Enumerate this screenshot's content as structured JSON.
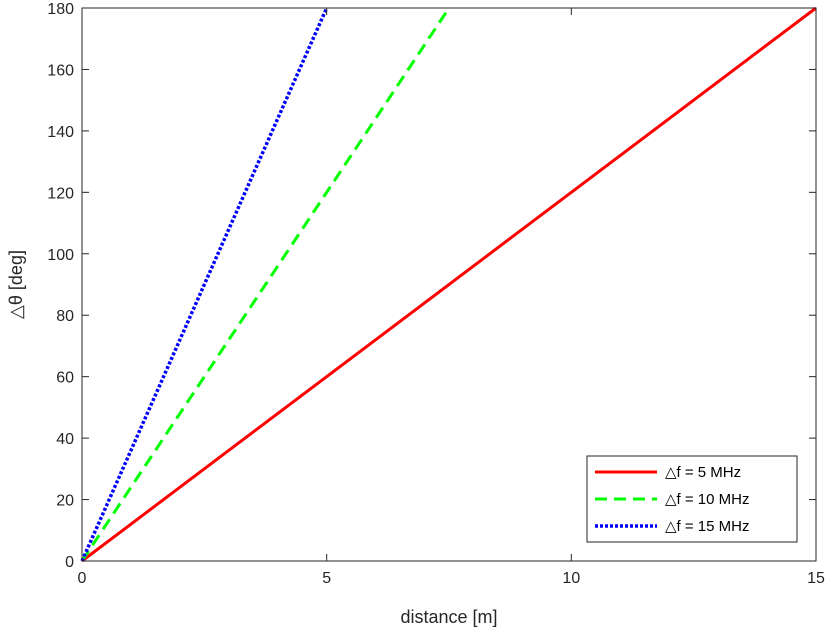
{
  "chart_data": {
    "type": "line",
    "xlabel": "distance [m]",
    "ylabel": "△θ [deg]",
    "xlim": [
      0,
      15
    ],
    "ylim": [
      0,
      180
    ],
    "xticks": [
      0,
      5,
      10,
      15
    ],
    "yticks": [
      0,
      20,
      40,
      60,
      80,
      100,
      120,
      140,
      160,
      180
    ],
    "grid": false,
    "legend_position": "bottom-right",
    "series": [
      {
        "name": "△f = 5 MHz",
        "color": "#ff0000",
        "style": "solid",
        "x": [
          0,
          15
        ],
        "y": [
          0,
          180
        ]
      },
      {
        "name": "△f = 10 MHz",
        "color": "#00ff00",
        "style": "dashed",
        "x": [
          0,
          7.5
        ],
        "y": [
          0,
          180
        ]
      },
      {
        "name": "△f = 15 MHz",
        "color": "#0000ff",
        "style": "dotted",
        "x": [
          0,
          5
        ],
        "y": [
          0,
          180
        ]
      }
    ]
  }
}
